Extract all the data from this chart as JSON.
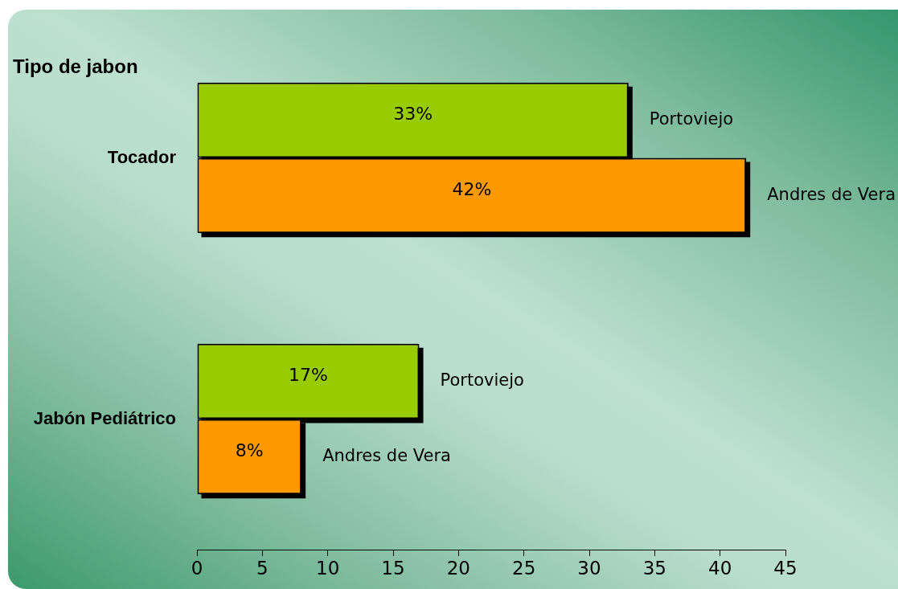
{
  "chart_data": {
    "type": "bar",
    "orientation": "horizontal",
    "ylabel": "Tipo de jabon",
    "categories": [
      "Tocador",
      "Jabón Pediátrico"
    ],
    "series": [
      {
        "name": "Portoviejo",
        "color": "#99cc00",
        "values": [
          33,
          17
        ],
        "value_labels": [
          "33%",
          "17%"
        ]
      },
      {
        "name": "Andres de Vera",
        "color": "#ff9900",
        "values": [
          42,
          8
        ],
        "value_labels": [
          "42%",
          "8%"
        ]
      }
    ],
    "xlim": [
      0,
      45
    ],
    "xticks": [
      0,
      5,
      10,
      15,
      20,
      25,
      30,
      35,
      40,
      45
    ],
    "grid": false,
    "legend": false
  }
}
